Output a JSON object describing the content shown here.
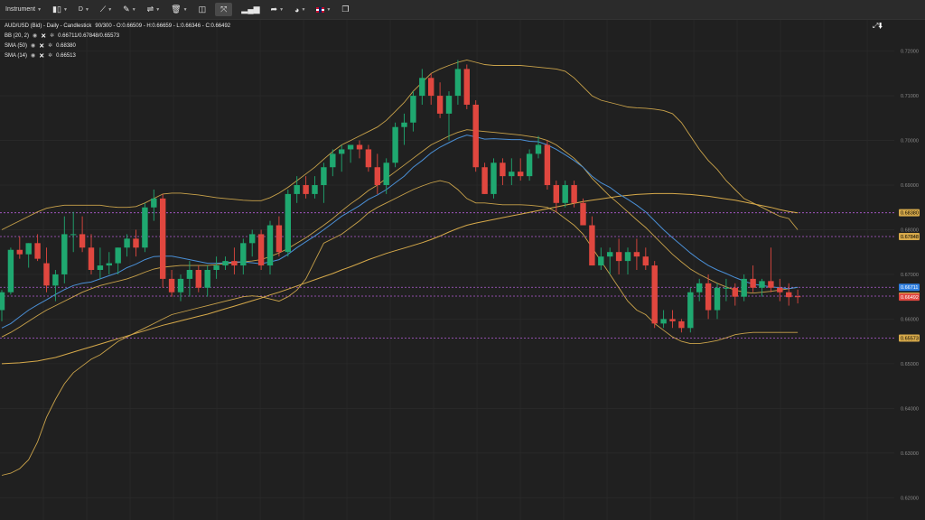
{
  "toolbar": {
    "instrument_label": "Instrument",
    "timeframe_label": "D",
    "items": [
      "candles-icon",
      "line-tool-icon",
      "ruler-icon",
      "fork-icon",
      "trash-icon",
      "layout-icon",
      "fullscreen-icon",
      "bar-chart-icon",
      "share-icon",
      "palette-icon",
      "flag-icon",
      "popout-icon"
    ]
  },
  "legend": {
    "title": "AUD/USD (Bid) - Daily - Candlestick",
    "ohlc": "90/300 - O:0.66509 - H:0.66659 - L:0.66346 - C:0.66492",
    "bb_label": "BB (20, 2)",
    "bb_values": "0.66711/0.67848/0.65573",
    "sma50_label": "SMA (50)",
    "sma50_value": "0.68380",
    "sma14_label": "SMA (14)",
    "sma14_value": "0.66513"
  },
  "colors": {
    "up": "#1fa870",
    "down": "#e0473f",
    "bb": "#c9a24a",
    "sma50": "#d6a94a",
    "sma14": "#4a8fd6",
    "hline": "#b25cd6",
    "grid": "#2c2c2c",
    "axis_text": "#8a8a8a"
  },
  "chart_data": {
    "type": "candlestick",
    "ylim": [
      0.615,
      0.727
    ],
    "y_ticks": [
      "0.72000",
      "0.71000",
      "0.70000",
      "0.69000",
      "0.68000",
      "0.67000",
      "0.66000",
      "0.65000",
      "0.64000",
      "0.63000",
      "0.62000"
    ],
    "candles": [
      [
        0.662,
        0.6665,
        0.6595,
        0.666
      ],
      [
        0.666,
        0.676,
        0.6655,
        0.6755
      ],
      [
        0.6755,
        0.6785,
        0.6735,
        0.6745
      ],
      [
        0.6745,
        0.677,
        0.6715,
        0.677
      ],
      [
        0.677,
        0.679,
        0.673,
        0.6735
      ],
      [
        0.6725,
        0.676,
        0.666,
        0.6675
      ],
      [
        0.6675,
        0.671,
        0.664,
        0.67
      ],
      [
        0.67,
        0.683,
        0.668,
        0.679
      ],
      [
        0.679,
        0.684,
        0.675,
        0.679
      ],
      [
        0.679,
        0.683,
        0.675,
        0.676
      ],
      [
        0.676,
        0.679,
        0.67,
        0.671
      ],
      [
        0.671,
        0.676,
        0.669,
        0.672
      ],
      [
        0.672,
        0.675,
        0.67,
        0.6725
      ],
      [
        0.6725,
        0.676,
        0.67,
        0.676
      ],
      [
        0.676,
        0.679,
        0.674,
        0.678
      ],
      [
        0.678,
        0.68,
        0.674,
        0.676
      ],
      [
        0.676,
        0.686,
        0.675,
        0.685
      ],
      [
        0.685,
        0.689,
        0.682,
        0.687
      ],
      [
        0.687,
        0.688,
        0.667,
        0.669
      ],
      [
        0.669,
        0.671,
        0.665,
        0.666
      ],
      [
        0.666,
        0.67,
        0.664,
        0.669
      ],
      [
        0.669,
        0.673,
        0.665,
        0.671
      ],
      [
        0.671,
        0.672,
        0.666,
        0.667
      ],
      [
        0.667,
        0.672,
        0.665,
        0.671
      ],
      [
        0.671,
        0.674,
        0.669,
        0.672
      ],
      [
        0.672,
        0.674,
        0.671,
        0.673
      ],
      [
        0.673,
        0.676,
        0.67,
        0.672
      ],
      [
        0.672,
        0.678,
        0.67,
        0.677
      ],
      [
        0.677,
        0.68,
        0.674,
        0.679
      ],
      [
        0.679,
        0.68,
        0.671,
        0.672
      ],
      [
        0.672,
        0.682,
        0.67,
        0.681
      ],
      [
        0.681,
        0.683,
        0.674,
        0.675
      ],
      [
        0.675,
        0.689,
        0.674,
        0.688
      ],
      [
        0.688,
        0.692,
        0.686,
        0.69
      ],
      [
        0.69,
        0.692,
        0.687,
        0.688
      ],
      [
        0.688,
        0.692,
        0.687,
        0.69
      ],
      [
        0.69,
        0.695,
        0.686,
        0.694
      ],
      [
        0.694,
        0.698,
        0.692,
        0.697
      ],
      [
        0.697,
        0.699,
        0.693,
        0.698
      ],
      [
        0.698,
        0.699,
        0.695,
        0.699
      ],
      [
        0.699,
        0.7,
        0.696,
        0.698
      ],
      [
        0.698,
        0.699,
        0.693,
        0.694
      ],
      [
        0.694,
        0.697,
        0.688,
        0.69
      ],
      [
        0.69,
        0.696,
        0.688,
        0.695
      ],
      [
        0.695,
        0.704,
        0.694,
        0.703
      ],
      [
        0.703,
        0.706,
        0.699,
        0.704
      ],
      [
        0.704,
        0.711,
        0.702,
        0.71
      ],
      [
        0.71,
        0.716,
        0.708,
        0.714
      ],
      [
        0.714,
        0.715,
        0.708,
        0.71
      ],
      [
        0.71,
        0.713,
        0.705,
        0.706
      ],
      [
        0.706,
        0.711,
        0.7,
        0.71
      ],
      [
        0.71,
        0.718,
        0.708,
        0.716
      ],
      [
        0.716,
        0.717,
        0.707,
        0.708
      ],
      [
        0.708,
        0.709,
        0.693,
        0.694
      ],
      [
        0.694,
        0.695,
        0.688,
        0.688
      ],
      [
        0.688,
        0.696,
        0.687,
        0.695
      ],
      [
        0.695,
        0.696,
        0.69,
        0.692
      ],
      [
        0.692,
        0.696,
        0.69,
        0.693
      ],
      [
        0.693,
        0.696,
        0.691,
        0.692
      ],
      [
        0.692,
        0.698,
        0.691,
        0.697
      ],
      [
        0.697,
        0.701,
        0.696,
        0.699
      ],
      [
        0.699,
        0.7,
        0.689,
        0.69
      ],
      [
        0.69,
        0.691,
        0.684,
        0.686
      ],
      [
        0.686,
        0.691,
        0.685,
        0.69
      ],
      [
        0.69,
        0.691,
        0.685,
        0.686
      ],
      [
        0.686,
        0.687,
        0.682,
        0.681
      ],
      [
        0.681,
        0.683,
        0.672,
        0.672
      ],
      [
        0.672,
        0.676,
        0.671,
        0.674
      ],
      [
        0.674,
        0.676,
        0.67,
        0.675
      ],
      [
        0.675,
        0.678,
        0.67,
        0.673
      ],
      [
        0.673,
        0.676,
        0.67,
        0.675
      ],
      [
        0.675,
        0.678,
        0.671,
        0.674
      ],
      [
        0.674,
        0.676,
        0.671,
        0.672
      ],
      [
        0.672,
        0.673,
        0.658,
        0.659
      ],
      [
        0.659,
        0.662,
        0.658,
        0.66
      ],
      [
        0.66,
        0.662,
        0.658,
        0.6595
      ],
      [
        0.6595,
        0.66,
        0.657,
        0.658
      ],
      [
        0.658,
        0.667,
        0.657,
        0.666
      ],
      [
        0.666,
        0.669,
        0.664,
        0.668
      ],
      [
        0.668,
        0.67,
        0.66,
        0.662
      ],
      [
        0.662,
        0.668,
        0.66,
        0.667
      ],
      [
        0.667,
        0.669,
        0.664,
        0.667
      ],
      [
        0.667,
        0.668,
        0.663,
        0.665
      ],
      [
        0.665,
        0.67,
        0.664,
        0.669
      ],
      [
        0.669,
        0.672,
        0.666,
        0.667
      ],
      [
        0.667,
        0.669,
        0.665,
        0.6685
      ],
      [
        0.6685,
        0.676,
        0.666,
        0.667
      ],
      [
        0.667,
        0.669,
        0.664,
        0.666
      ],
      [
        0.666,
        0.668,
        0.663,
        0.6649
      ],
      [
        0.6651,
        0.6666,
        0.6635,
        0.6649
      ]
    ],
    "sma14": [
      0.658,
      0.659,
      0.6605,
      0.662,
      0.6632,
      0.6643,
      0.6655,
      0.6666,
      0.6675,
      0.668,
      0.6683,
      0.669,
      0.6697,
      0.6704,
      0.6715,
      0.6723,
      0.6733,
      0.674,
      0.6741,
      0.6741,
      0.6737,
      0.6733,
      0.6729,
      0.6725,
      0.6725,
      0.6726,
      0.6728,
      0.6728,
      0.6726,
      0.6724,
      0.6728,
      0.6733,
      0.6745,
      0.676,
      0.6773,
      0.6786,
      0.68,
      0.6815,
      0.683,
      0.6842,
      0.6854,
      0.6868,
      0.6878,
      0.689,
      0.6905,
      0.692,
      0.694,
      0.6955,
      0.6972,
      0.6985,
      0.6995,
      0.7005,
      0.7012,
      0.7008,
      0.7003,
      0.7004,
      0.7003,
      0.7002,
      0.7002,
      0.6998,
      0.6997,
      0.699,
      0.698,
      0.6968,
      0.6955,
      0.694,
      0.692,
      0.6905,
      0.6895,
      0.688,
      0.6868,
      0.6855,
      0.684,
      0.682,
      0.68,
      0.6782,
      0.6765,
      0.6748,
      0.6733,
      0.672,
      0.671,
      0.6702,
      0.6693,
      0.6685,
      0.6678,
      0.6675,
      0.6672,
      0.667,
      0.6668,
      0.6671
    ],
    "sma50": [
      0.65,
      0.6501,
      0.6502,
      0.6504,
      0.6506,
      0.651,
      0.6514,
      0.652,
      0.6526,
      0.6532,
      0.6538,
      0.6544,
      0.655,
      0.6556,
      0.6562,
      0.6568,
      0.6574,
      0.658,
      0.6586,
      0.6591,
      0.6596,
      0.6601,
      0.6606,
      0.6611,
      0.6617,
      0.6623,
      0.6629,
      0.6635,
      0.6641,
      0.6647,
      0.6654,
      0.666,
      0.6667,
      0.6674,
      0.6681,
      0.6688,
      0.6695,
      0.6702,
      0.671,
      0.6717,
      0.6725,
      0.6733,
      0.674,
      0.6747,
      0.6753,
      0.6759,
      0.6765,
      0.6771,
      0.6778,
      0.6786,
      0.6795,
      0.6803,
      0.681,
      0.6815,
      0.6819,
      0.6823,
      0.6827,
      0.6831,
      0.6835,
      0.6839,
      0.6843,
      0.6847,
      0.6851,
      0.6855,
      0.6859,
      0.6863,
      0.6866,
      0.6869,
      0.6872,
      0.6875,
      0.6877,
      0.6879,
      0.688,
      0.6881,
      0.6881,
      0.6881,
      0.688,
      0.6879,
      0.6877,
      0.6875,
      0.6872,
      0.6869,
      0.6866,
      0.6862,
      0.6858,
      0.6854,
      0.685,
      0.6845,
      0.6841,
      0.6838
    ],
    "bb_upper": [
      0.68,
      0.681,
      0.682,
      0.683,
      0.684,
      0.6848,
      0.6852,
      0.6855,
      0.6855,
      0.6855,
      0.6855,
      0.6855,
      0.6852,
      0.685,
      0.685,
      0.6852,
      0.686,
      0.687,
      0.688,
      0.6882,
      0.6882,
      0.688,
      0.6878,
      0.6875,
      0.6872,
      0.687,
      0.6868,
      0.6866,
      0.6865,
      0.6865,
      0.6872,
      0.6882,
      0.6895,
      0.691,
      0.6925,
      0.694,
      0.6958,
      0.6975,
      0.699,
      0.7,
      0.701,
      0.702,
      0.703,
      0.7045,
      0.7065,
      0.7085,
      0.711,
      0.713,
      0.715,
      0.716,
      0.7168,
      0.7175,
      0.718,
      0.7175,
      0.717,
      0.7168,
      0.7168,
      0.7168,
      0.7168,
      0.7166,
      0.7164,
      0.7162,
      0.716,
      0.7155,
      0.714,
      0.712,
      0.71,
      0.709,
      0.7085,
      0.708,
      0.7075,
      0.7073,
      0.7072,
      0.707,
      0.7067,
      0.706,
      0.704,
      0.701,
      0.698,
      0.6955,
      0.6935,
      0.691,
      0.689,
      0.687,
      0.686,
      0.685,
      0.684,
      0.683,
      0.6825,
      0.68
    ],
    "bb_mid": [
      0.656,
      0.657,
      0.6582,
      0.6595,
      0.6608,
      0.662,
      0.663,
      0.664,
      0.665,
      0.666,
      0.6668,
      0.6675,
      0.668,
      0.6685,
      0.669,
      0.6697,
      0.6705,
      0.6712,
      0.6716,
      0.6718,
      0.672,
      0.672,
      0.672,
      0.672,
      0.6722,
      0.6724,
      0.6726,
      0.6728,
      0.673,
      0.6733,
      0.674,
      0.6748,
      0.6758,
      0.677,
      0.6782,
      0.6796,
      0.681,
      0.6825,
      0.6842,
      0.6858,
      0.6872,
      0.6888,
      0.69,
      0.6915,
      0.693,
      0.6945,
      0.696,
      0.6975,
      0.699,
      0.7,
      0.701,
      0.7018,
      0.7024,
      0.7022,
      0.702,
      0.7018,
      0.7016,
      0.7014,
      0.7012,
      0.7009,
      0.7006,
      0.7,
      0.699,
      0.6975,
      0.696,
      0.694,
      0.6915,
      0.6895,
      0.6875,
      0.6858,
      0.684,
      0.6822,
      0.6805,
      0.6785,
      0.6765,
      0.6745,
      0.6728,
      0.6712,
      0.67,
      0.669,
      0.668,
      0.6672,
      0.6665,
      0.666,
      0.6658,
      0.666,
      0.6662,
      0.6665,
      0.6668,
      0.6671
    ],
    "bb_lower": [
      0.625,
      0.6255,
      0.6265,
      0.6285,
      0.6325,
      0.638,
      0.642,
      0.6455,
      0.648,
      0.6495,
      0.651,
      0.652,
      0.6535,
      0.655,
      0.656,
      0.657,
      0.658,
      0.659,
      0.66,
      0.661,
      0.6615,
      0.662,
      0.6625,
      0.663,
      0.6635,
      0.664,
      0.6645,
      0.665,
      0.6652,
      0.665,
      0.6645,
      0.664,
      0.665,
      0.6665,
      0.669,
      0.673,
      0.677,
      0.678,
      0.679,
      0.6805,
      0.682,
      0.6838,
      0.685,
      0.686,
      0.687,
      0.688,
      0.689,
      0.6898,
      0.6905,
      0.691,
      0.6905,
      0.689,
      0.687,
      0.686,
      0.686,
      0.6858,
      0.6856,
      0.6856,
      0.6856,
      0.6855,
      0.6853,
      0.685,
      0.684,
      0.6825,
      0.681,
      0.679,
      0.676,
      0.673,
      0.67,
      0.667,
      0.664,
      0.662,
      0.661,
      0.659,
      0.6575,
      0.656,
      0.655,
      0.6545,
      0.6545,
      0.6548,
      0.6552,
      0.6558,
      0.6565,
      0.6568,
      0.657,
      0.657,
      0.657,
      0.657,
      0.657,
      0.657
    ],
    "hlines": [
      0.6838,
      0.67848,
      0.66711,
      0.66513,
      0.65573
    ],
    "price_tags": [
      {
        "value": 0.6838,
        "label": "0.68380",
        "color": "#d6a94a",
        "text": "#000"
      },
      {
        "value": 0.67848,
        "label": "0.67848",
        "color": "#d6a94a",
        "text": "#000"
      },
      {
        "value": 0.66711,
        "label": "0.66711",
        "color": "#2f7fe0",
        "text": "#fff"
      },
      {
        "value": 0.66513,
        "label": "0.66513",
        "color": "#d6a94a",
        "text": "#000"
      },
      {
        "value": 0.66492,
        "label": "0.66492",
        "color": "#e0473f",
        "text": "#fff"
      },
      {
        "value": 0.65573,
        "label": "0.65573",
        "color": "#d6a94a",
        "text": "#000"
      }
    ]
  }
}
